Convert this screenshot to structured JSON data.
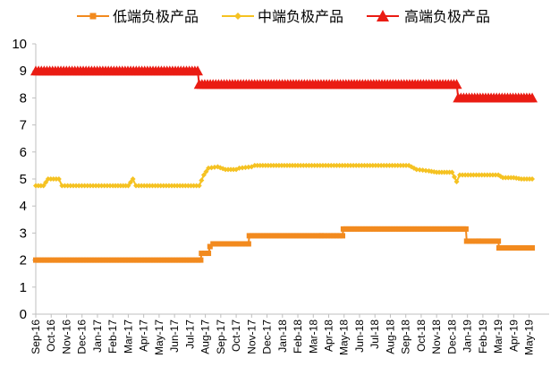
{
  "chart_data": {
    "type": "line",
    "ylim": [
      0,
      10
    ],
    "yticks": [
      0,
      1,
      2,
      3,
      4,
      5,
      6,
      7,
      8,
      9,
      10
    ],
    "x_tick_labels": [
      "Sep-16",
      "Oct-16",
      "Nov-16",
      "Dec-16",
      "Jan-17",
      "Feb-17",
      "Mar-17",
      "Apr-17",
      "May-17",
      "Jun-17",
      "Jul-17",
      "Aug-17",
      "Sep-17",
      "Oct-17",
      "Nov-17",
      "Dec-17",
      "Jan-18",
      "Feb-18",
      "Mar-18",
      "Apr-18",
      "May-18",
      "Jun-18",
      "Jul-18",
      "Aug-18",
      "Sep-18",
      "Oct-18",
      "Nov-18",
      "Dec-18",
      "Jan-19",
      "Feb-19",
      "Mar-19",
      "Apr-19",
      "May-19"
    ],
    "x_range": [
      0,
      33.3
    ],
    "legend_position": "top",
    "grid": false,
    "series": [
      {
        "name": "低端负极产品",
        "color": "#f28a1e",
        "marker": "square",
        "points": [
          [
            0,
            2.0
          ],
          [
            10.7,
            2.0
          ],
          [
            10.75,
            2.25
          ],
          [
            11.2,
            2.25
          ],
          [
            11.3,
            2.5
          ],
          [
            11.5,
            2.6
          ],
          [
            13.0,
            2.6
          ],
          [
            13.8,
            2.6
          ],
          [
            13.85,
            2.9
          ],
          [
            18.5,
            2.9
          ],
          [
            18.55,
            2.9
          ],
          [
            19.9,
            2.9
          ],
          [
            19.95,
            3.15
          ],
          [
            26.9,
            3.15
          ],
          [
            27.9,
            3.15
          ],
          [
            27.95,
            2.7
          ],
          [
            28.7,
            2.7
          ],
          [
            28.75,
            2.7
          ],
          [
            30.0,
            2.7
          ],
          [
            30.05,
            2.45
          ],
          [
            32.2,
            2.45
          ]
        ]
      },
      {
        "name": "中端负极产品",
        "color": "#f5c222",
        "marker": "diamond",
        "points": [
          [
            0,
            4.75
          ],
          [
            0.5,
            4.75
          ],
          [
            0.8,
            5.0
          ],
          [
            1.5,
            5.0
          ],
          [
            1.7,
            4.75
          ],
          [
            5.0,
            4.75
          ],
          [
            6.0,
            4.75
          ],
          [
            6.3,
            5.0
          ],
          [
            6.5,
            4.75
          ],
          [
            10.6,
            4.75
          ],
          [
            10.9,
            5.15
          ],
          [
            11.2,
            5.4
          ],
          [
            11.8,
            5.45
          ],
          [
            12.3,
            5.35
          ],
          [
            13.0,
            5.35
          ],
          [
            13.2,
            5.4
          ],
          [
            14.0,
            5.45
          ],
          [
            14.2,
            5.5
          ],
          [
            17.0,
            5.5
          ],
          [
            24.2,
            5.5
          ],
          [
            24.7,
            5.35
          ],
          [
            25.5,
            5.3
          ],
          [
            26.0,
            5.25
          ],
          [
            27.0,
            5.25
          ],
          [
            27.3,
            4.9
          ],
          [
            27.5,
            5.15
          ],
          [
            30.0,
            5.15
          ],
          [
            30.3,
            5.05
          ],
          [
            31.0,
            5.05
          ],
          [
            31.5,
            5.0
          ],
          [
            32.2,
            5.0
          ]
        ]
      },
      {
        "name": "高端负极产品",
        "color": "#ea1c13",
        "marker": "triangle",
        "points": [
          [
            0,
            9.0
          ],
          [
            10.5,
            9.0
          ],
          [
            10.6,
            8.5
          ],
          [
            27.3,
            8.5
          ],
          [
            27.4,
            8.0
          ],
          [
            32.2,
            8.0
          ]
        ]
      }
    ]
  }
}
